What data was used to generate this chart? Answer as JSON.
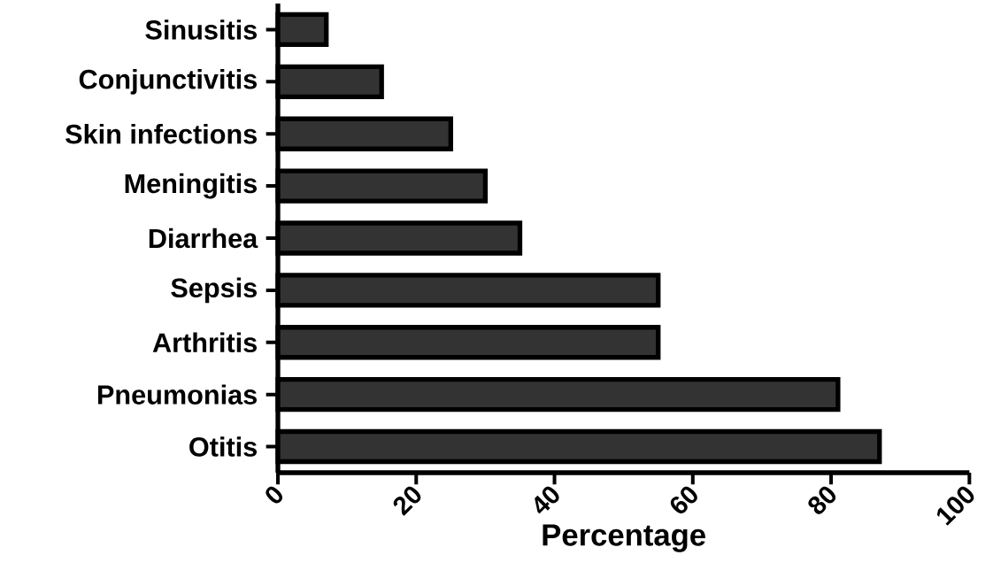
{
  "chart_data": {
    "type": "bar",
    "orientation": "horizontal",
    "xlabel": "Percentage",
    "categories": [
      "Sinusitis",
      "Conjunctivitis",
      "Skin infections",
      "Meningitis",
      "Diarrhea",
      "Sepsis",
      "Arthritis",
      "Pneumonias",
      "Otitis"
    ],
    "values": [
      7,
      15,
      25,
      30,
      35,
      55,
      55,
      81,
      87
    ],
    "color": "#333333",
    "xlim": [
      0,
      100
    ],
    "xticks": [
      0,
      20,
      40,
      60,
      80,
      100
    ]
  }
}
